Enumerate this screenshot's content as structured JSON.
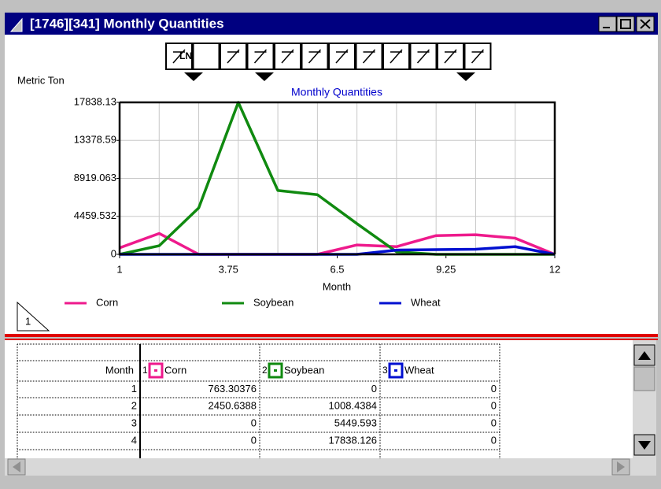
{
  "window": {
    "title": "[1746][341]  Monthly Quantities"
  },
  "toolbar": {
    "ln_label": "LN"
  },
  "tab_label": "1",
  "chart_data": {
    "type": "line",
    "title": "Monthly Quantities",
    "y_label": "Metric Ton",
    "x_label": "Month",
    "x": [
      1,
      2,
      3,
      4,
      5,
      6,
      7,
      8,
      9,
      10,
      11,
      12
    ],
    "series": [
      {
        "name": "Corn",
        "color": "#ee1a8c",
        "values": [
          763.30376,
          2450.6388,
          0,
          0,
          0,
          0,
          1100,
          900,
          2200,
          2300,
          1900,
          0
        ]
      },
      {
        "name": "Soybean",
        "color": "#108a10",
        "values": [
          0,
          1008.4384,
          5449.593,
          17838.126,
          7500,
          7000,
          3600,
          300,
          0,
          0,
          0,
          0
        ]
      },
      {
        "name": "Wheat",
        "color": "#0010d0",
        "values": [
          0,
          0,
          0,
          0,
          0,
          0,
          0,
          500,
          550,
          600,
          900,
          0
        ]
      }
    ],
    "xlim": [
      1,
      12
    ],
    "xticks": [
      1,
      3.75,
      6.5,
      9.25,
      12
    ],
    "ylim": [
      0,
      17838.13
    ],
    "yticks": [
      0,
      4459.532,
      8919.063,
      13378.59,
      17838.13
    ],
    "grid": true
  },
  "table": {
    "month_header": "Month",
    "column_numbers": [
      1,
      2,
      3
    ],
    "rows_shown": 4
  }
}
